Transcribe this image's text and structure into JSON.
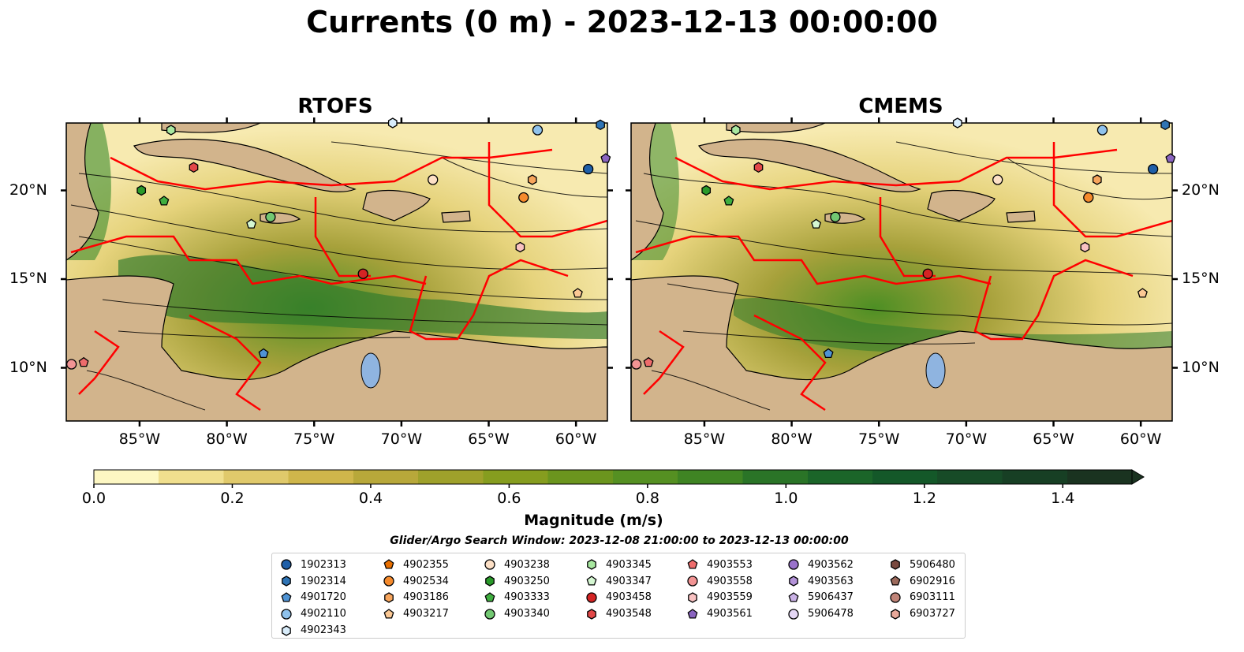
{
  "title": "Currents (0 m) - 2023-12-13 00:00:00",
  "panels": [
    {
      "title": "RTOFS"
    },
    {
      "title": "CMEMS"
    }
  ],
  "map": {
    "lon_range": [
      -89.2,
      -58.2
    ],
    "lat_range": [
      7.0,
      23.8
    ],
    "lon_ticks": [
      -85,
      -80,
      -75,
      -70,
      -65,
      -60
    ],
    "lon_tick_labels": [
      "85°W",
      "80°W",
      "75°W",
      "70°W",
      "65°W",
      "60°W"
    ],
    "lat_ticks": [
      10,
      15,
      20
    ],
    "lat_tick_labels": [
      "10°N",
      "15°N",
      "20°N"
    ],
    "colors": {
      "land": "#d2b48c",
      "water_low": "#fff8c2",
      "water_mid": "#c9b84e",
      "water_high": "#1a5c2a",
      "eez": "#ff0000",
      "lakes": "#8fb4e0"
    }
  },
  "colorbar": {
    "label": "Magnitude (m/s)",
    "min": 0.0,
    "max": 1.5,
    "extend": "max",
    "ticks": [
      0.0,
      0.2,
      0.4,
      0.6,
      0.8,
      1.0,
      1.2,
      1.4
    ],
    "tick_labels": [
      "0.0",
      "0.2",
      "0.4",
      "0.6",
      "0.8",
      "1.0",
      "1.2",
      "1.4"
    ],
    "colors": [
      "#fdf7c3",
      "#f0df8e",
      "#e0c96b",
      "#cfb64b",
      "#b8a83a",
      "#9fa12b",
      "#869d1f",
      "#6b951e",
      "#559022",
      "#3f8423",
      "#2a7427",
      "#1b6529",
      "#145829",
      "#174b27",
      "#173f24",
      "#1a3320"
    ]
  },
  "search_window": "Glider/Argo Search Window: 2023-12-08 21:00:00 to 2023-12-13 00:00:00",
  "legend": {
    "columns": [
      [
        {
          "id": "1902313",
          "marker": "circle",
          "color": "#1f5fa8"
        },
        {
          "id": "1902314",
          "marker": "hexagon",
          "color": "#2f74b5"
        },
        {
          "id": "4901720",
          "marker": "pentagon",
          "color": "#4f93d4"
        },
        {
          "id": "4902110",
          "marker": "circle",
          "color": "#8fc2ec"
        },
        {
          "id": "4902343",
          "marker": "hexagon",
          "color": "#d8ecfa"
        }
      ],
      [
        {
          "id": "4902355",
          "marker": "pentagon",
          "color": "#e86f00"
        },
        {
          "id": "4902534",
          "marker": "circle",
          "color": "#f58a2c"
        },
        {
          "id": "4903186",
          "marker": "hexagon",
          "color": "#f7a55c"
        },
        {
          "id": "4903217",
          "marker": "pentagon",
          "color": "#fbc894"
        }
      ],
      [
        {
          "id": "4903238",
          "marker": "circle",
          "color": "#fde0c6"
        },
        {
          "id": "4903250",
          "marker": "hexagon",
          "color": "#2a9a2a"
        },
        {
          "id": "4903333",
          "marker": "pentagon",
          "color": "#3fae3f"
        },
        {
          "id": "4903340",
          "marker": "circle",
          "color": "#72c872"
        }
      ],
      [
        {
          "id": "4903345",
          "marker": "hexagon",
          "color": "#a8e8a0"
        },
        {
          "id": "4903347",
          "marker": "pentagon",
          "color": "#d5f7d2"
        },
        {
          "id": "4903458",
          "marker": "circle",
          "color": "#d42424"
        },
        {
          "id": "4903548",
          "marker": "hexagon",
          "color": "#e24848"
        }
      ],
      [
        {
          "id": "4903553",
          "marker": "pentagon",
          "color": "#ee6c6c"
        },
        {
          "id": "4903558",
          "marker": "circle",
          "color": "#f29494"
        },
        {
          "id": "4903559",
          "marker": "hexagon",
          "color": "#f9c2c2"
        },
        {
          "id": "4903561",
          "marker": "pentagon",
          "color": "#8a64c0"
        }
      ],
      [
        {
          "id": "4903562",
          "marker": "circle",
          "color": "#9a72cc"
        },
        {
          "id": "4903563",
          "marker": "hexagon",
          "color": "#b392d8"
        },
        {
          "id": "5906437",
          "marker": "pentagon",
          "color": "#cab2e6"
        },
        {
          "id": "5906478",
          "marker": "circle",
          "color": "#e4d6f4"
        }
      ],
      [
        {
          "id": "5906480",
          "marker": "hexagon",
          "color": "#7a4a40"
        },
        {
          "id": "6902916",
          "marker": "pentagon",
          "color": "#9c6a5c"
        },
        {
          "id": "6903111",
          "marker": "circle",
          "color": "#c08478"
        },
        {
          "id": "6903727",
          "marker": "hexagon",
          "color": "#e8a89a"
        }
      ]
    ]
  }
}
